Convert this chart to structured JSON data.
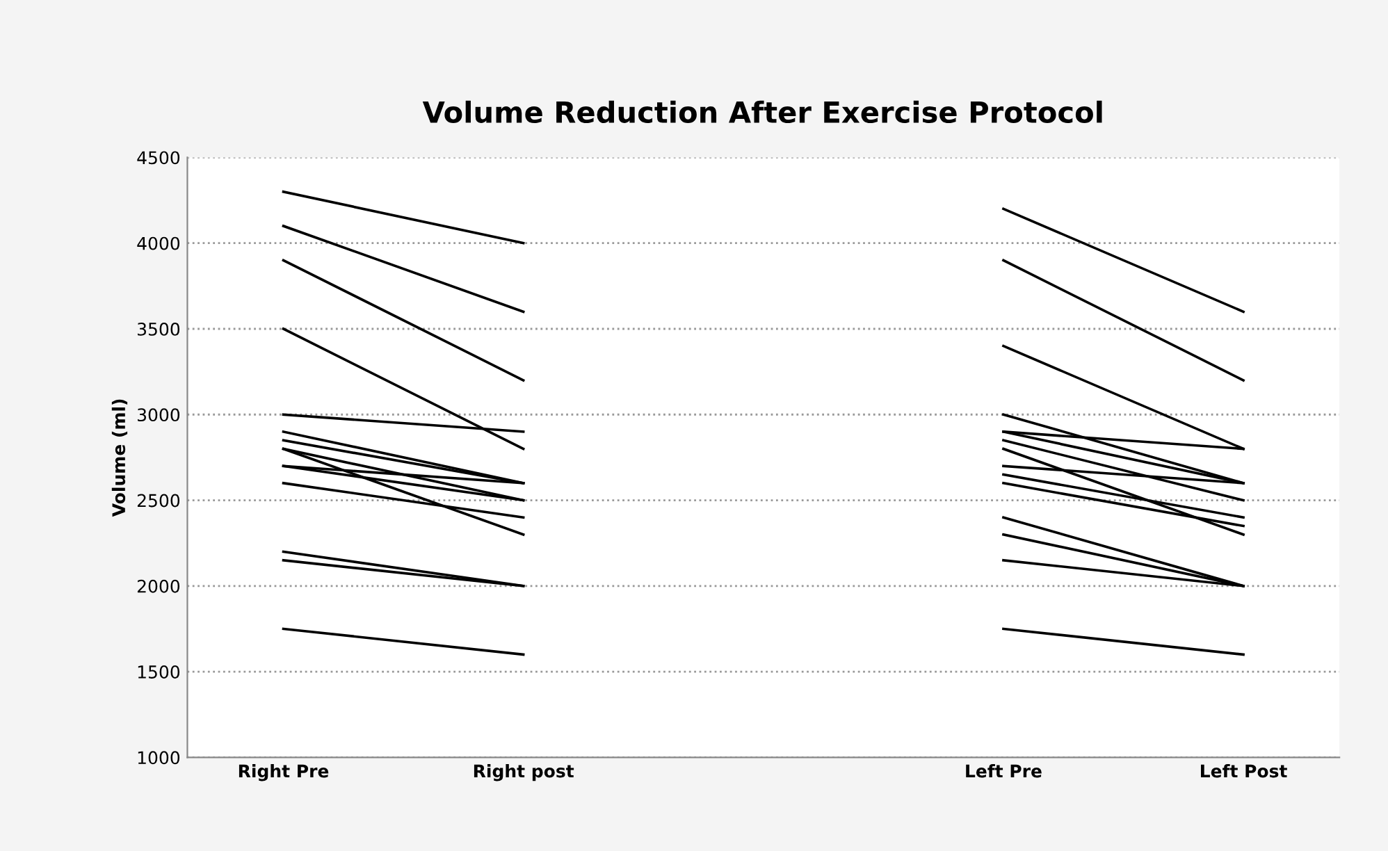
{
  "chart_data": {
    "type": "line",
    "title": "Volume Reduction After Exercise Protocol",
    "ylabel": "Volume (ml)",
    "categories": [
      "Right Pre",
      "Right post",
      null,
      "Left Pre",
      "Left Post"
    ],
    "ylim": [
      1000,
      4500
    ],
    "yticks": [
      1000,
      1500,
      2000,
      2500,
      3000,
      3500,
      4000,
      4500
    ],
    "grid": "y",
    "marker": "none",
    "line_style": "solid",
    "series": [
      {
        "color": "#000000",
        "values": [
          4300,
          4000,
          null,
          4200,
          3600
        ]
      },
      {
        "color": "#000000",
        "values": [
          4100,
          3600,
          null,
          3900,
          3200
        ]
      },
      {
        "color": "#000000",
        "values": [
          3900,
          3200,
          null,
          3400,
          2800
        ]
      },
      {
        "color": "#000000",
        "values": [
          3500,
          2800,
          null,
          3000,
          2600
        ]
      },
      {
        "color": "#000000",
        "values": [
          3000,
          2900,
          null,
          2900,
          2800
        ]
      },
      {
        "color": "#000000",
        "values": [
          2900,
          2600,
          null,
          2900,
          2600
        ]
      },
      {
        "color": "#000000",
        "values": [
          2850,
          2600,
          null,
          2850,
          2500
        ]
      },
      {
        "color": "#000000",
        "values": [
          2800,
          2500,
          null,
          2800,
          2300
        ]
      },
      {
        "color": "#000000",
        "values": [
          2800,
          2300,
          null,
          2700,
          2600
        ]
      },
      {
        "color": "#000000",
        "values": [
          2700,
          2600,
          null,
          2650,
          2400
        ]
      },
      {
        "color": "#000000",
        "values": [
          2700,
          2500,
          null,
          2600,
          2350
        ]
      },
      {
        "color": "#000000",
        "values": [
          2600,
          2400,
          null,
          2400,
          2000
        ]
      },
      {
        "color": "#000000",
        "values": [
          2200,
          2000,
          null,
          2300,
          2000
        ]
      },
      {
        "color": "#000000",
        "values": [
          2150,
          2000,
          null,
          2150,
          2000
        ]
      },
      {
        "color": "#000000",
        "values": [
          1750,
          1600,
          null,
          1750,
          1600
        ]
      }
    ]
  }
}
